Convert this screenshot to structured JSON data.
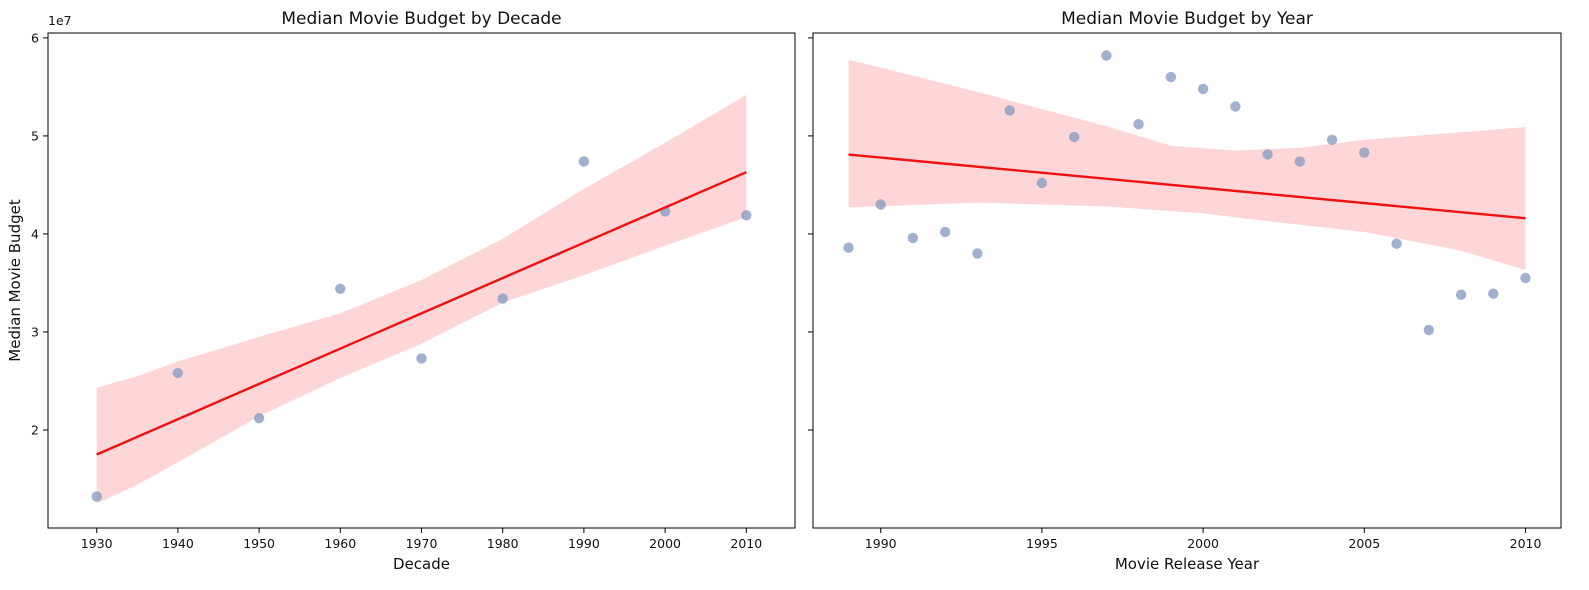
{
  "chart_data": [
    {
      "type": "scatter",
      "title": "Median Movie Budget by Decade",
      "xlabel": "Decade",
      "ylabel": "Median Movie Budget",
      "y_offset_label": "1e7",
      "xlim": [
        1924,
        2016
      ],
      "ylim": [
        10000000,
        60500000
      ],
      "xticks": [
        1930,
        1940,
        1950,
        1960,
        1970,
        1980,
        1990,
        2000,
        2010
      ],
      "yticks": [
        20000000,
        30000000,
        40000000,
        50000000,
        60000000
      ],
      "ytick_labels": [
        "2",
        "3",
        "4",
        "5",
        "6"
      ],
      "grid": false,
      "x": [
        1930,
        1940,
        1950,
        1960,
        1970,
        1980,
        1990,
        2000,
        2010
      ],
      "y": [
        13200000,
        25800000,
        21200000,
        34400000,
        27300000,
        33400000,
        47400000,
        42300000,
        41900000
      ],
      "regression": {
        "x": [
          1930,
          2010
        ],
        "y": [
          17500000,
          46300000
        ]
      },
      "ci_upper": {
        "x": [
          1930,
          1935,
          1940,
          1950,
          1960,
          1970,
          1980,
          1990,
          2000,
          2010
        ],
        "y": [
          24300000,
          25500000,
          27000000,
          29500000,
          31900000,
          35300000,
          39500000,
          44600000,
          49300000,
          54200000
        ]
      },
      "ci_lower": {
        "x": [
          1930,
          1935,
          1940,
          1950,
          1960,
          1970,
          1980,
          1990,
          2000,
          2010
        ],
        "y": [
          12500000,
          14400000,
          16700000,
          21400000,
          25300000,
          28800000,
          33000000,
          35800000,
          38800000,
          41700000
        ]
      },
      "colors": {
        "points": "#8a9cc4",
        "line": "#ee1111",
        "band": "#ffd6d8"
      }
    },
    {
      "type": "scatter",
      "title": "Median Movie Budget by Year",
      "xlabel": "Movie Release Year",
      "ylabel": "",
      "xlim": [
        1987.9,
        2011.1
      ],
      "ylim": [
        10000000,
        60500000
      ],
      "xticks": [
        1990,
        1995,
        2000,
        2005,
        2010
      ],
      "yticks": [
        20000000,
        30000000,
        40000000,
        50000000,
        60000000
      ],
      "grid": false,
      "x": [
        1989,
        1990,
        1991,
        1992,
        1993,
        1994,
        1995,
        1996,
        1997,
        1998,
        1999,
        2000,
        2001,
        2002,
        2003,
        2004,
        2005,
        2006,
        2007,
        2008,
        2009,
        2010
      ],
      "y": [
        38600000,
        43000000,
        39600000,
        40200000,
        38000000,
        52600000,
        45200000,
        49900000,
        58200000,
        51200000,
        56000000,
        54800000,
        53000000,
        48100000,
        47400000,
        49600000,
        48300000,
        39000000,
        30200000,
        33800000,
        33900000,
        35500000
      ],
      "regression": {
        "x": [
          1989,
          2010
        ],
        "y": [
          48100000,
          41600000
        ]
      },
      "ci_upper": {
        "x": [
          1989,
          1993,
          1997,
          1999,
          2001,
          2003,
          2005,
          2010
        ],
        "y": [
          57800000,
          54500000,
          51000000,
          49000000,
          48500000,
          48800000,
          49600000,
          50900000
        ]
      },
      "ci_lower": {
        "x": [
          1989,
          1993,
          1997,
          2000,
          2002,
          2005,
          2008,
          2010
        ],
        "y": [
          42700000,
          43200000,
          42800000,
          42100000,
          41300000,
          40200000,
          38300000,
          36300000
        ]
      },
      "colors": {
        "points": "#8a9cc4",
        "line": "#ee1111",
        "band": "#ffd6d8"
      }
    }
  ]
}
